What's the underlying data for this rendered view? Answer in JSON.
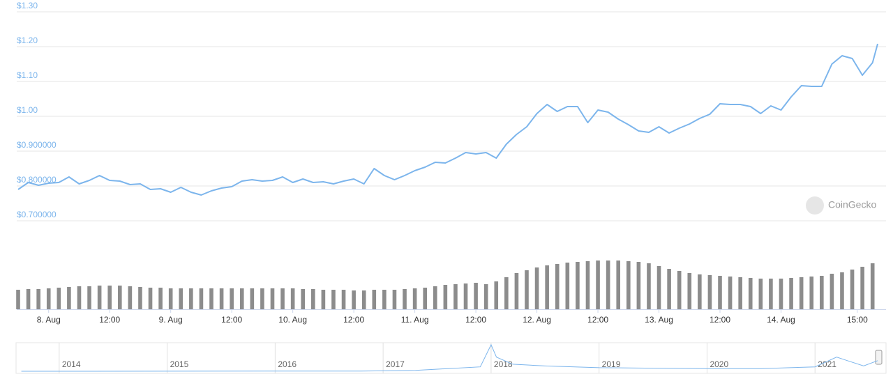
{
  "chart_data": [
    {
      "type": "line",
      "color": "#7cb5ec",
      "ylim": [
        0.7,
        1.3
      ],
      "yticks": [
        {
          "value": 0.7,
          "label": "$0.700000"
        },
        {
          "value": 0.8,
          "label": "$0.800000"
        },
        {
          "value": 0.9,
          "label": "$0.900000"
        },
        {
          "value": 1.0,
          "label": "$1.00"
        },
        {
          "value": 1.1,
          "label": "$1.10"
        },
        {
          "value": 1.2,
          "label": "$1.20"
        },
        {
          "value": 1.3,
          "label": "$1.30"
        }
      ],
      "xlim": [
        -6,
        163
      ],
      "x": [
        -6,
        -4,
        -2,
        0,
        2,
        4,
        6,
        8,
        10,
        12,
        14,
        16,
        18,
        20,
        22,
        24,
        26,
        28,
        30,
        32,
        34,
        36,
        38,
        40,
        42,
        44,
        46,
        48,
        50,
        52,
        54,
        56,
        58,
        60,
        62,
        64,
        66,
        68,
        70,
        72,
        74,
        76,
        78,
        80,
        82,
        84,
        86,
        88,
        90,
        92,
        94,
        96,
        98,
        100,
        102,
        104,
        106,
        108,
        110,
        112,
        114,
        116,
        118,
        120,
        122,
        124,
        126,
        128,
        130,
        132,
        134,
        136,
        138,
        140,
        142,
        144,
        146,
        148,
        150,
        152,
        154,
        156,
        158,
        160,
        162,
        163
      ],
      "values": [
        0.79,
        0.81,
        0.802,
        0.808,
        0.81,
        0.826,
        0.806,
        0.816,
        0.83,
        0.816,
        0.814,
        0.804,
        0.806,
        0.79,
        0.792,
        0.782,
        0.796,
        0.782,
        0.774,
        0.786,
        0.794,
        0.798,
        0.814,
        0.818,
        0.814,
        0.816,
        0.826,
        0.81,
        0.82,
        0.81,
        0.812,
        0.806,
        0.814,
        0.82,
        0.806,
        0.85,
        0.83,
        0.818,
        0.83,
        0.844,
        0.854,
        0.868,
        0.866,
        0.88,
        0.896,
        0.892,
        0.896,
        0.88,
        0.92,
        0.948,
        0.97,
        1.008,
        1.034,
        1.014,
        1.028,
        1.028,
        0.982,
        1.018,
        1.012,
        0.992,
        0.976,
        0.958,
        0.954,
        0.97,
        0.952,
        0.966,
        0.978,
        0.994,
        1.006,
        1.036,
        1.034,
        1.034,
        1.028,
        1.008,
        1.03,
        1.018,
        1.056,
        1.088,
        1.086,
        1.086,
        1.15,
        1.174,
        1.166,
        1.118,
        1.154,
        1.208
      ],
      "watermark": "CoinGecko"
    },
    {
      "type": "bar",
      "color": "#8c8c8c",
      "xlim": [
        -6,
        163
      ],
      "xticks": [
        {
          "value": 0,
          "label": "8. Aug"
        },
        {
          "value": 12,
          "label": "12:00"
        },
        {
          "value": 24,
          "label": "9. Aug"
        },
        {
          "value": 36,
          "label": "12:00"
        },
        {
          "value": 48,
          "label": "10. Aug"
        },
        {
          "value": 60,
          "label": "12:00"
        },
        {
          "value": 72,
          "label": "11. Aug"
        },
        {
          "value": 84,
          "label": "12:00"
        },
        {
          "value": 96,
          "label": "12. Aug"
        },
        {
          "value": 108,
          "label": "12:00"
        },
        {
          "value": 120,
          "label": "13. Aug"
        },
        {
          "value": 132,
          "label": "12:00"
        },
        {
          "value": 144,
          "label": "14. Aug"
        },
        {
          "value": 159,
          "label": "15:00"
        }
      ],
      "x": [
        -6,
        -4,
        -2,
        0,
        2,
        4,
        6,
        8,
        10,
        12,
        14,
        16,
        18,
        20,
        22,
        24,
        26,
        28,
        30,
        32,
        34,
        36,
        38,
        40,
        42,
        44,
        46,
        48,
        50,
        52,
        54,
        56,
        58,
        60,
        62,
        64,
        66,
        68,
        70,
        72,
        74,
        76,
        78,
        80,
        82,
        84,
        86,
        88,
        90,
        92,
        94,
        96,
        98,
        100,
        102,
        104,
        106,
        108,
        110,
        112,
        114,
        116,
        118,
        120,
        122,
        124,
        126,
        128,
        130,
        132,
        134,
        136,
        138,
        140,
        142,
        144,
        146,
        148,
        150,
        152,
        154,
        156,
        158,
        160,
        162
      ],
      "values": [
        28,
        29,
        29,
        30,
        31,
        32,
        33,
        33,
        34,
        34,
        34,
        33,
        32,
        31,
        31,
        30,
        30,
        30,
        30,
        30,
        30,
        30,
        30,
        30,
        30,
        30,
        30,
        30,
        29,
        29,
        28,
        28,
        28,
        27,
        27,
        28,
        28,
        28,
        29,
        30,
        31,
        33,
        35,
        36,
        37,
        38,
        36,
        40,
        46,
        52,
        56,
        60,
        63,
        65,
        67,
        68,
        69,
        70,
        70,
        70,
        69,
        68,
        66,
        62,
        58,
        55,
        52,
        50,
        49,
        48,
        47,
        46,
        45,
        44,
        44,
        44,
        45,
        46,
        47,
        48,
        51,
        53,
        57,
        61,
        66
      ]
    },
    {
      "type": "line",
      "color": "#7cb5ec",
      "xlim": [
        2013.62,
        2021.58
      ],
      "xticks": [
        2014,
        2015,
        2016,
        2017,
        2018,
        2019,
        2020,
        2021
      ],
      "x": [
        2013.65,
        2016.8,
        2017.3,
        2017.6,
        2017.9,
        2018.0,
        2018.05,
        2018.2,
        2018.5,
        2019.0,
        2019.5,
        2020.0,
        2020.5,
        2021.0,
        2021.2,
        2021.3,
        2021.45,
        2021.58
      ],
      "values": [
        0,
        0.02,
        0.1,
        0.3,
        0.5,
        3.0,
        1.6,
        0.8,
        0.6,
        0.4,
        0.35,
        0.3,
        0.3,
        0.5,
        1.6,
        1.2,
        0.6,
        1.2
      ]
    }
  ]
}
